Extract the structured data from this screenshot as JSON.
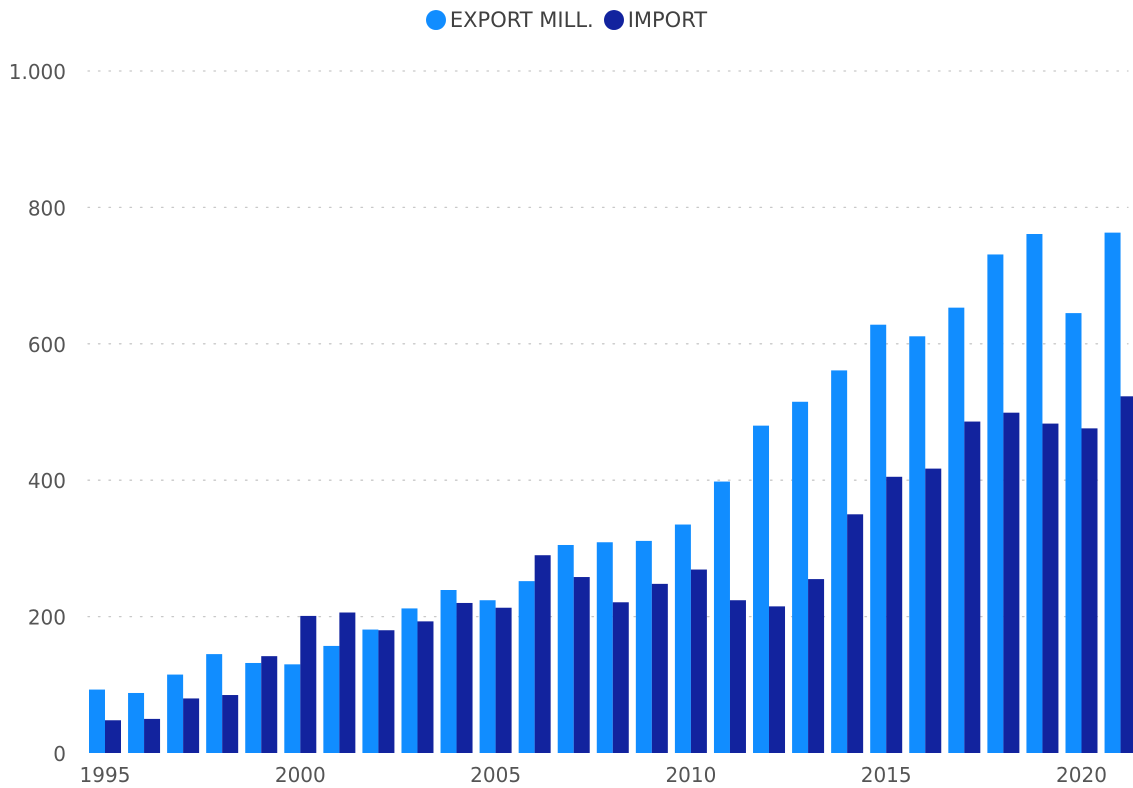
{
  "chart_data": {
    "type": "bar",
    "title": "",
    "xlabel": "",
    "ylabel": "",
    "x": [
      1995,
      1996,
      1997,
      1998,
      1999,
      2000,
      2001,
      2002,
      2003,
      2004,
      2005,
      2006,
      2007,
      2008,
      2009,
      2010,
      2011,
      2012,
      2013,
      2014,
      2015,
      2016,
      2017,
      2018,
      2019,
      2020,
      2021
    ],
    "x_tick_labels": [
      "1995",
      "2000",
      "2005",
      "2010",
      "2015",
      "2020"
    ],
    "y_tick_labels": [
      "0",
      "200",
      "400",
      "600",
      "800",
      "1.000"
    ],
    "y_ticks": [
      0,
      200,
      400,
      600,
      800,
      1000
    ],
    "ylim": [
      0,
      1000
    ],
    "grid": "horizontal dotted",
    "legend_position": "top-center",
    "series": [
      {
        "name": "EXPORT MILL.",
        "color": "#118dff",
        "values": [
          93,
          88,
          115,
          145,
          132,
          130,
          157,
          181,
          212,
          239,
          224,
          252,
          305,
          309,
          311,
          335,
          398,
          480,
          515,
          561,
          628,
          611,
          653,
          731,
          761,
          645,
          763
        ]
      },
      {
        "name": "IMPORT",
        "color": "#12239e",
        "values": [
          48,
          50,
          80,
          85,
          142,
          201,
          206,
          180,
          193,
          220,
          213,
          290,
          258,
          221,
          248,
          269,
          224,
          215,
          255,
          350,
          405,
          417,
          486,
          499,
          483,
          476,
          523
        ]
      }
    ]
  }
}
